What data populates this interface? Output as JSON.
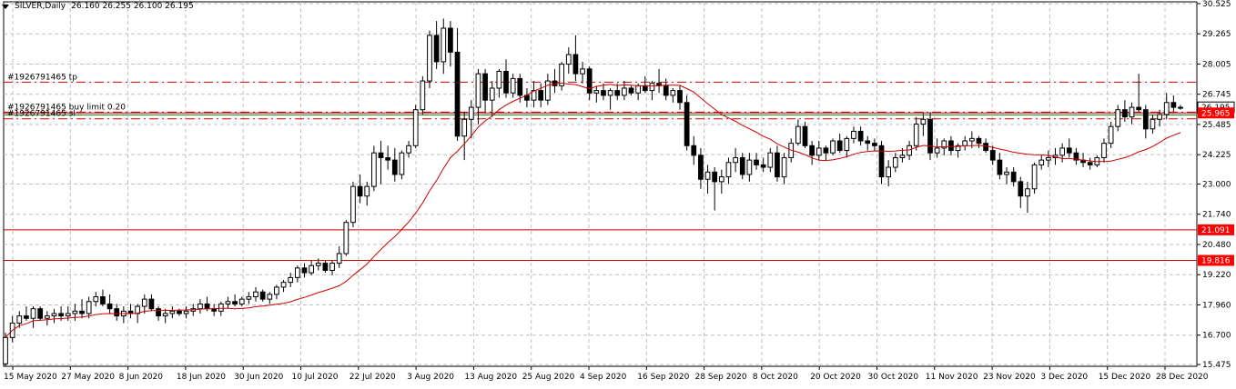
{
  "header": {
    "symbol": "SILVER,Daily",
    "ohlc": "26.160 26.255 26.100 26.195"
  },
  "order_lines": {
    "tp_label": "#1926791465 tp",
    "buy_label": "#1926791465 buy limit 0.20",
    "sl_label": "#1926791465 sl"
  },
  "chart_data": {
    "type": "candlestick",
    "symbol": "SILVER",
    "timeframe": "Daily",
    "y_ticks": [
      "30.525",
      "29.265",
      "28.005",
      "26.745",
      "25.485",
      "24.225",
      "23.000",
      "21.740",
      "20.480",
      "19.220",
      "17.960",
      "16.700",
      "15.475"
    ],
    "x_ticks": [
      "15 May 2020",
      "27 May 2020",
      "8 Jun 2020",
      "18 Jun 2020",
      "30 Jun 2020",
      "10 Jul 2020",
      "22 Jul 2020",
      "3 Aug 2020",
      "13 Aug 2020",
      "25 Aug 2020",
      "4 Sep 2020",
      "16 Sep 2020",
      "28 Sep 2020",
      "8 Oct 2020",
      "20 Oct 2020",
      "30 Oct 2020",
      "11 Nov 2020",
      "23 Nov 2020",
      "3 Dec 2020",
      "15 Dec 2020",
      "28 Dec 2020"
    ],
    "ylim": [
      15.4,
      30.6
    ],
    "price_labels": [
      {
        "value": 26.195,
        "text": "26.195",
        "style": "current",
        "color": "#000000"
      },
      {
        "value": 25.965,
        "text": "25.965",
        "style": "boxed",
        "color": "#ff0000"
      },
      {
        "value": 21.091,
        "text": "21.091",
        "style": "boxed",
        "color": "#ff0000"
      },
      {
        "value": 19.816,
        "text": "19.816",
        "style": "boxed",
        "color": "#ff0000"
      }
    ],
    "hlines": [
      {
        "value": 27.25,
        "color": "#cc0000",
        "style": "dashdot"
      },
      {
        "value": 26.0,
        "color": "#cc0000",
        "style": "dashdot"
      },
      {
        "value": 25.965,
        "color": "#cc0000",
        "style": "solid"
      },
      {
        "value": 25.88,
        "color": "#228B22",
        "style": "solid"
      },
      {
        "value": 25.72,
        "color": "#cc0000",
        "style": "dashdot"
      },
      {
        "value": 21.091,
        "color": "#cc0000",
        "style": "solid"
      },
      {
        "value": 19.816,
        "color": "#cc0000",
        "style": "solid"
      }
    ],
    "candles": [
      [
        15.5,
        16.8,
        15.4,
        16.6
      ],
      [
        16.6,
        17.5,
        16.4,
        17.2
      ],
      [
        17.2,
        17.7,
        17.0,
        17.5
      ],
      [
        17.5,
        17.9,
        17.3,
        17.4
      ],
      [
        17.4,
        17.9,
        17.0,
        17.8
      ],
      [
        17.8,
        17.9,
        17.3,
        17.4
      ],
      [
        17.4,
        17.7,
        17.1,
        17.5
      ],
      [
        17.5,
        17.8,
        17.2,
        17.6
      ],
      [
        17.6,
        17.9,
        17.3,
        17.5
      ],
      [
        17.5,
        17.9,
        17.3,
        17.6
      ],
      [
        17.6,
        18.0,
        17.3,
        17.7
      ],
      [
        17.7,
        18.2,
        17.4,
        17.6
      ],
      [
        17.6,
        18.3,
        17.4,
        18.1
      ],
      [
        18.1,
        18.5,
        17.9,
        18.3
      ],
      [
        18.3,
        18.6,
        17.9,
        18.0
      ],
      [
        18.0,
        18.4,
        17.6,
        17.8
      ],
      [
        17.8,
        18.0,
        17.3,
        17.5
      ],
      [
        17.5,
        17.9,
        17.2,
        17.7
      ],
      [
        17.7,
        18.0,
        17.4,
        17.6
      ],
      [
        17.6,
        18.0,
        17.2,
        17.9
      ],
      [
        17.9,
        18.4,
        17.6,
        18.2
      ],
      [
        18.2,
        18.4,
        17.7,
        17.8
      ],
      [
        17.8,
        17.9,
        17.3,
        17.5
      ],
      [
        17.5,
        17.8,
        17.2,
        17.6
      ],
      [
        17.6,
        17.9,
        17.4,
        17.7
      ],
      [
        17.7,
        17.8,
        17.5,
        17.6
      ],
      [
        17.6,
        17.9,
        17.4,
        17.7
      ],
      [
        17.7,
        18.0,
        17.5,
        17.8
      ],
      [
        17.8,
        18.2,
        17.6,
        18.0
      ],
      [
        18.0,
        18.3,
        17.7,
        17.8
      ],
      [
        17.8,
        18.0,
        17.5,
        17.7
      ],
      [
        17.7,
        18.1,
        17.5,
        18.0
      ],
      [
        18.0,
        18.3,
        17.8,
        18.1
      ],
      [
        18.1,
        18.4,
        17.9,
        18.0
      ],
      [
        18.0,
        18.3,
        17.9,
        18.2
      ],
      [
        18.2,
        18.5,
        18.0,
        18.3
      ],
      [
        18.3,
        18.7,
        18.1,
        18.5
      ],
      [
        18.5,
        18.6,
        18.1,
        18.2
      ],
      [
        18.2,
        18.5,
        18.0,
        18.4
      ],
      [
        18.4,
        18.8,
        18.2,
        18.7
      ],
      [
        18.7,
        19.0,
        18.5,
        18.9
      ],
      [
        18.9,
        19.3,
        18.7,
        19.1
      ],
      [
        19.1,
        19.6,
        18.9,
        19.5
      ],
      [
        19.5,
        19.7,
        19.1,
        19.3
      ],
      [
        19.3,
        19.8,
        19.2,
        19.6
      ],
      [
        19.6,
        19.9,
        19.4,
        19.7
      ],
      [
        19.7,
        19.8,
        19.3,
        19.4
      ],
      [
        19.4,
        19.8,
        19.2,
        19.7
      ],
      [
        19.7,
        20.4,
        19.5,
        20.1
      ],
      [
        20.1,
        21.5,
        20.0,
        21.4
      ],
      [
        21.4,
        23.1,
        21.2,
        22.9
      ],
      [
        22.9,
        23.4,
        22.2,
        22.5
      ],
      [
        22.5,
        23.1,
        22.1,
        22.9
      ],
      [
        22.9,
        24.6,
        22.7,
        24.3
      ],
      [
        24.3,
        24.8,
        23.0,
        24.1
      ],
      [
        24.1,
        24.6,
        23.6,
        24.0
      ],
      [
        24.0,
        24.5,
        23.1,
        23.4
      ],
      [
        23.4,
        24.4,
        23.2,
        24.3
      ],
      [
        24.3,
        24.8,
        24.1,
        24.6
      ],
      [
        24.6,
        26.3,
        24.5,
        26.1
      ],
      [
        26.1,
        27.5,
        25.9,
        27.3
      ],
      [
        27.3,
        29.4,
        27.0,
        29.2
      ],
      [
        29.2,
        29.8,
        27.8,
        28.1
      ],
      [
        28.1,
        29.9,
        27.6,
        29.5
      ],
      [
        29.5,
        29.8,
        27.9,
        28.5
      ],
      [
        28.5,
        29.5,
        24.8,
        25.0
      ],
      [
        25.0,
        26.0,
        24.0,
        25.7
      ],
      [
        25.7,
        26.5,
        24.9,
        26.2
      ],
      [
        26.2,
        27.8,
        25.5,
        27.6
      ],
      [
        27.6,
        27.8,
        26.0,
        26.5
      ],
      [
        26.5,
        27.3,
        25.8,
        27.0
      ],
      [
        27.0,
        27.8,
        26.6,
        27.7
      ],
      [
        27.7,
        28.2,
        26.6,
        26.8
      ],
      [
        26.8,
        27.6,
        26.6,
        27.4
      ],
      [
        27.4,
        27.6,
        26.4,
        26.7
      ],
      [
        26.7,
        27.0,
        26.2,
        26.5
      ],
      [
        26.5,
        27.3,
        26.2,
        26.9
      ],
      [
        26.9,
        27.2,
        26.2,
        26.5
      ],
      [
        26.5,
        27.6,
        26.3,
        27.3
      ],
      [
        27.3,
        27.8,
        26.8,
        27.1
      ],
      [
        27.1,
        28.1,
        26.9,
        28.0
      ],
      [
        28.0,
        28.7,
        27.6,
        28.4
      ],
      [
        28.4,
        29.2,
        27.3,
        27.6
      ],
      [
        27.6,
        28.1,
        27.2,
        27.8
      ],
      [
        27.8,
        27.9,
        26.5,
        26.8
      ],
      [
        26.8,
        27.1,
        26.4,
        26.9
      ],
      [
        26.9,
        27.2,
        26.5,
        26.7
      ],
      [
        26.7,
        27.0,
        26.1,
        26.9
      ],
      [
        26.9,
        27.2,
        26.5,
        26.7
      ],
      [
        26.7,
        27.3,
        26.5,
        27.0
      ],
      [
        27.0,
        27.1,
        26.7,
        26.8
      ],
      [
        26.8,
        27.2,
        26.5,
        27.1
      ],
      [
        27.1,
        27.5,
        26.8,
        26.9
      ],
      [
        26.9,
        27.3,
        26.5,
        27.2
      ],
      [
        27.2,
        27.8,
        26.8,
        27.1
      ],
      [
        27.1,
        27.4,
        26.5,
        26.7
      ],
      [
        26.7,
        27.0,
        26.4,
        26.9
      ],
      [
        26.9,
        27.1,
        26.1,
        26.4
      ],
      [
        26.4,
        26.7,
        24.4,
        24.6
      ],
      [
        24.6,
        25.0,
        23.8,
        24.2
      ],
      [
        24.2,
        24.5,
        22.8,
        23.2
      ],
      [
        23.2,
        23.8,
        22.6,
        23.5
      ],
      [
        23.5,
        23.7,
        21.9,
        23.1
      ],
      [
        23.1,
        23.6,
        22.6,
        23.3
      ],
      [
        23.3,
        24.1,
        23.0,
        23.9
      ],
      [
        23.9,
        24.5,
        23.5,
        24.1
      ],
      [
        24.1,
        24.3,
        23.2,
        23.4
      ],
      [
        23.4,
        24.3,
        23.1,
        24.0
      ],
      [
        24.0,
        24.3,
        23.6,
        23.8
      ],
      [
        23.8,
        24.1,
        23.5,
        23.7
      ],
      [
        23.7,
        24.5,
        23.5,
        24.3
      ],
      [
        24.3,
        24.6,
        23.1,
        23.3
      ],
      [
        23.3,
        24.3,
        23.0,
        24.1
      ],
      [
        24.1,
        24.9,
        23.9,
        24.7
      ],
      [
        24.7,
        25.7,
        24.6,
        25.4
      ],
      [
        25.4,
        25.6,
        24.5,
        24.6
      ],
      [
        24.6,
        24.8,
        23.8,
        24.2
      ],
      [
        24.2,
        24.8,
        24.0,
        24.5
      ],
      [
        24.5,
        24.6,
        24.0,
        24.3
      ],
      [
        24.3,
        24.9,
        24.2,
        24.8
      ],
      [
        24.8,
        25.1,
        24.3,
        24.4
      ],
      [
        24.4,
        25.0,
        24.1,
        24.9
      ],
      [
        24.9,
        25.4,
        24.7,
        25.2
      ],
      [
        25.2,
        25.4,
        24.6,
        24.8
      ],
      [
        24.8,
        25.0,
        24.4,
        24.7
      ],
      [
        24.7,
        24.9,
        24.4,
        24.6
      ],
      [
        24.6,
        24.8,
        23.0,
        23.3
      ],
      [
        23.3,
        24.0,
        22.9,
        23.7
      ],
      [
        23.7,
        24.3,
        23.5,
        24.1
      ],
      [
        24.1,
        24.5,
        23.9,
        24.2
      ],
      [
        24.2,
        24.8,
        24.0,
        24.6
      ],
      [
        24.6,
        25.8,
        24.4,
        25.5
      ],
      [
        25.5,
        26.0,
        25.0,
        25.7
      ],
      [
        25.7,
        26.0,
        24.0,
        24.3
      ],
      [
        24.3,
        24.9,
        24.1,
        24.5
      ],
      [
        24.5,
        24.9,
        24.2,
        24.8
      ],
      [
        24.8,
        25.0,
        24.2,
        24.4
      ],
      [
        24.4,
        24.7,
        24.1,
        24.6
      ],
      [
        24.6,
        25.0,
        24.4,
        24.8
      ],
      [
        24.8,
        25.2,
        24.5,
        24.9
      ],
      [
        24.9,
        25.0,
        24.5,
        24.7
      ],
      [
        24.7,
        24.9,
        24.3,
        24.4
      ],
      [
        24.4,
        24.6,
        23.8,
        24.0
      ],
      [
        24.0,
        24.3,
        23.2,
        23.4
      ],
      [
        23.4,
        23.7,
        23.0,
        23.5
      ],
      [
        23.5,
        23.7,
        22.9,
        23.1
      ],
      [
        23.1,
        23.3,
        22.0,
        22.5
      ],
      [
        22.5,
        23.1,
        21.8,
        22.8
      ],
      [
        22.8,
        23.9,
        22.6,
        23.8
      ],
      [
        23.8,
        24.2,
        23.6,
        24.0
      ],
      [
        24.0,
        24.4,
        23.7,
        24.1
      ],
      [
        24.1,
        24.5,
        23.8,
        24.2
      ],
      [
        24.2,
        24.7,
        23.9,
        24.5
      ],
      [
        24.5,
        24.9,
        24.1,
        24.3
      ],
      [
        24.3,
        24.5,
        23.8,
        24.0
      ],
      [
        24.0,
        24.3,
        23.7,
        23.9
      ],
      [
        23.9,
        24.1,
        23.6,
        23.8
      ],
      [
        23.8,
        24.2,
        23.7,
        24.1
      ],
      [
        24.1,
        24.9,
        23.9,
        24.7
      ],
      [
        24.7,
        25.6,
        24.5,
        25.4
      ],
      [
        25.4,
        26.3,
        25.2,
        26.1
      ],
      [
        26.1,
        26.5,
        25.6,
        25.8
      ],
      [
        25.8,
        26.4,
        25.5,
        26.2
      ],
      [
        26.2,
        27.6,
        26.0,
        26.1
      ],
      [
        26.1,
        26.3,
        24.9,
        25.3
      ],
      [
        25.3,
        25.9,
        25.1,
        25.7
      ],
      [
        25.7,
        26.1,
        25.4,
        25.9
      ],
      [
        25.9,
        26.8,
        25.7,
        26.4
      ],
      [
        26.4,
        26.7,
        26.0,
        26.2
      ],
      [
        26.2,
        26.3,
        26.1,
        26.195
      ]
    ],
    "ma_period": 20,
    "ma_color": "#cc0000"
  }
}
